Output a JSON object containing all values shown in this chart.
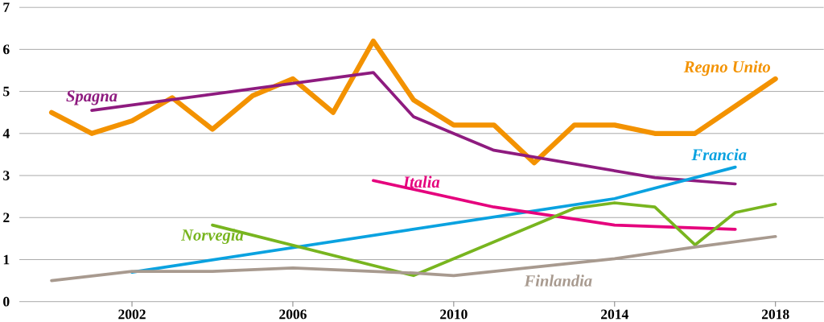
{
  "chart_data": {
    "type": "line",
    "xlim": [
      1999.2,
      2019.2
    ],
    "ylim": [
      0,
      7
    ],
    "xticks": [
      2002,
      2006,
      2010,
      2014,
      2018
    ],
    "yticks": [
      0,
      1,
      2,
      3,
      4,
      5,
      6,
      7
    ],
    "grid": "y",
    "legend": false,
    "marker": "none",
    "line_style": "solid",
    "series": [
      {
        "name": "Regno Unito",
        "color": "#f39200",
        "x": [
          2000,
          2001,
          2002,
          2003,
          2004,
          2005,
          2006,
          2007,
          2008,
          2009,
          2010,
          2011,
          2012,
          2013,
          2014,
          2015,
          2016,
          2017,
          2018
        ],
        "values": [
          4.5,
          4.0,
          4.3,
          4.85,
          4.1,
          4.9,
          5.3,
          4.5,
          6.2,
          4.8,
          4.2,
          4.2,
          3.3,
          4.2,
          4.2,
          4.0,
          4.0,
          4.65,
          5.3
        ]
      },
      {
        "name": "Spagna",
        "color": "#8e1b7f",
        "x": [
          2001,
          2008,
          2009,
          2011,
          2015,
          2017
        ],
        "values": [
          4.55,
          5.45,
          4.4,
          3.6,
          2.95,
          2.8
        ]
      },
      {
        "name": "Francia",
        "color": "#0aa2e0",
        "x": [
          2002,
          2014,
          2017
        ],
        "values": [
          0.7,
          2.45,
          3.2
        ]
      },
      {
        "name": "Italia",
        "color": "#e5007d",
        "x": [
          2008,
          2011,
          2014,
          2017
        ],
        "values": [
          2.88,
          2.25,
          1.82,
          1.72
        ]
      },
      {
        "name": "Norvegia",
        "color": "#78b51f",
        "x": [
          2004,
          2009,
          2013,
          2014,
          2015,
          2016,
          2017,
          2018
        ],
        "values": [
          1.82,
          0.62,
          2.22,
          2.35,
          2.25,
          1.35,
          2.12,
          2.32
        ]
      },
      {
        "name": "Finlandia",
        "color": "#a89a8f",
        "x": [
          2000,
          2002,
          2004,
          2006,
          2009,
          2010,
          2014,
          2016,
          2018
        ],
        "values": [
          0.5,
          0.72,
          0.72,
          0.8,
          0.68,
          0.62,
          1.02,
          1.3,
          1.55
        ]
      }
    ]
  }
}
